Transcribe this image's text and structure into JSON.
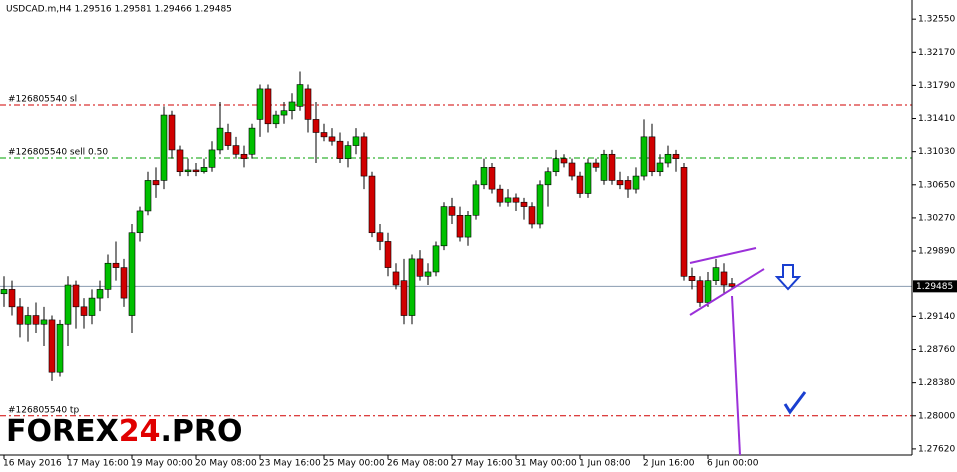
{
  "chart_data": {
    "type": "candlestick",
    "title": "USDCAD.m,H4  1.29516 1.29581 1.29466 1.29485",
    "categories": [
      "16 May 2016",
      null,
      null,
      null,
      null,
      null,
      null,
      null,
      "17 May 16:00",
      null,
      null,
      null,
      null,
      null,
      null,
      null,
      "19 May 00:00",
      null,
      null,
      null,
      null,
      null,
      null,
      null,
      "20 May 08:00",
      null,
      null,
      null,
      null,
      null,
      null,
      null,
      "23 May 16:00",
      null,
      null,
      null,
      null,
      null,
      null,
      null,
      "25 May 00:00",
      null,
      null,
      null,
      null,
      null,
      null,
      null,
      "26 May 08:00",
      null,
      null,
      null,
      null,
      null,
      null,
      null,
      "27 May 16:00",
      null,
      null,
      null,
      null,
      null,
      null,
      null,
      "31 May 00:00",
      null,
      null,
      null,
      null,
      null,
      null,
      null,
      "1 Jun 08:00",
      null,
      null,
      null,
      null,
      null,
      null,
      null,
      "2 Jun 16:00",
      null,
      null,
      null,
      null,
      null,
      null,
      null,
      "6 Jun 00:00",
      null,
      null,
      null
    ],
    "open": [
      1.294,
      1.2945,
      1.2925,
      1.2905,
      1.2915,
      1.2905,
      1.291,
      1.285,
      1.2905,
      1.295,
      1.2925,
      1.2915,
      1.2935,
      1.2945,
      1.2975,
      1.297,
      1.2915,
      1.301,
      1.3035,
      1.307,
      1.307,
      1.3145,
      1.3105,
      1.308,
      1.3082,
      1.308,
      1.3085,
      1.3105,
      1.3125,
      1.311,
      1.31,
      1.31,
      1.314,
      1.3175,
      1.3135,
      1.3145,
      1.315,
      1.3155,
      1.3175,
      1.314,
      1.3125,
      1.312,
      1.3115,
      1.3095,
      1.311,
      1.312,
      1.3075,
      1.301,
      1.3,
      1.2965,
      1.2955,
      1.2915,
      1.298,
      1.296,
      1.2965,
      1.2995,
      1.304,
      1.303,
      1.3005,
      1.303,
      1.3065,
      1.3085,
      1.306,
      1.3045,
      1.305,
      1.3045,
      1.304,
      1.302,
      1.3065,
      1.308,
      1.3095,
      1.309,
      1.3075,
      1.3055,
      1.309,
      1.307,
      1.31,
      1.307,
      1.307,
      1.306,
      1.3075,
      1.312,
      1.308,
      1.309,
      1.31,
      1.3085,
      1.296,
      1.2955,
      1.293,
      1.2955,
      1.2965,
      1.29516
    ],
    "high": [
      1.296,
      1.2955,
      1.2935,
      1.2925,
      1.293,
      1.2925,
      1.2915,
      1.291,
      1.296,
      1.2955,
      1.2935,
      1.2945,
      1.2955,
      1.2985,
      1.3,
      1.298,
      1.302,
      1.304,
      1.308,
      1.3085,
      1.3155,
      1.315,
      1.311,
      1.3095,
      1.309,
      1.3095,
      1.3115,
      1.316,
      1.3135,
      1.312,
      1.311,
      1.3135,
      1.318,
      1.318,
      1.315,
      1.316,
      1.317,
      1.3195,
      1.318,
      1.316,
      1.3135,
      1.313,
      1.3125,
      1.3115,
      1.313,
      1.3125,
      1.308,
      1.302,
      1.301,
      1.2975,
      1.298,
      1.2985,
      1.299,
      1.2975,
      1.3,
      1.3045,
      1.305,
      1.304,
      1.3035,
      1.307,
      1.3095,
      1.309,
      1.3065,
      1.306,
      1.3055,
      1.305,
      1.3045,
      1.307,
      1.3085,
      1.3105,
      1.31,
      1.3095,
      1.308,
      1.3095,
      1.3095,
      1.3105,
      1.3105,
      1.308,
      1.3075,
      1.3085,
      1.314,
      1.3135,
      1.31,
      1.311,
      1.3105,
      1.309,
      1.297,
      1.296,
      1.2965,
      1.298,
      1.2975,
      1.29581
    ],
    "low": [
      1.2925,
      1.2915,
      1.289,
      1.2885,
      1.2895,
      1.288,
      1.284,
      1.2845,
      1.288,
      1.29,
      1.29,
      1.2905,
      1.292,
      1.2935,
      1.2955,
      1.2925,
      1.2895,
      1.3,
      1.303,
      1.305,
      1.306,
      1.3095,
      1.3075,
      1.3075,
      1.3075,
      1.3078,
      1.308,
      1.31,
      1.3105,
      1.3095,
      1.3085,
      1.3095,
      1.312,
      1.3125,
      1.313,
      1.3135,
      1.314,
      1.315,
      1.3125,
      1.309,
      1.3115,
      1.311,
      1.309,
      1.3085,
      1.31,
      1.306,
      1.3005,
      1.299,
      1.296,
      1.2945,
      1.2905,
      1.2905,
      1.2955,
      1.295,
      1.296,
      1.299,
      1.302,
      1.3,
      1.2995,
      1.3025,
      1.306,
      1.3055,
      1.304,
      1.304,
      1.3035,
      1.3025,
      1.3015,
      1.3015,
      1.304,
      1.3075,
      1.3085,
      1.307,
      1.305,
      1.305,
      1.308,
      1.3065,
      1.3065,
      1.306,
      1.305,
      1.3055,
      1.307,
      1.3075,
      1.3075,
      1.3085,
      1.308,
      1.2955,
      1.2945,
      1.2925,
      1.2925,
      1.295,
      1.294,
      1.29466
    ],
    "close": [
      1.2945,
      1.2925,
      1.2905,
      1.2915,
      1.2905,
      1.291,
      1.285,
      1.2905,
      1.295,
      1.2925,
      1.2915,
      1.2935,
      1.2945,
      1.2975,
      1.297,
      1.2935,
      1.301,
      1.3035,
      1.307,
      1.3065,
      1.3145,
      1.3105,
      1.308,
      1.3082,
      1.308,
      1.3085,
      1.3105,
      1.313,
      1.311,
      1.31,
      1.3095,
      1.313,
      1.3175,
      1.3135,
      1.3145,
      1.315,
      1.316,
      1.318,
      1.314,
      1.3125,
      1.312,
      1.3115,
      1.3095,
      1.311,
      1.312,
      1.3075,
      1.301,
      1.3,
      1.297,
      1.295,
      1.2915,
      1.298,
      1.296,
      1.2965,
      1.2995,
      1.304,
      1.303,
      1.3005,
      1.303,
      1.3065,
      1.3085,
      1.306,
      1.3045,
      1.305,
      1.3045,
      1.304,
      1.302,
      1.3065,
      1.308,
      1.3095,
      1.309,
      1.3075,
      1.3055,
      1.309,
      1.3085,
      1.31,
      1.307,
      1.3065,
      1.306,
      1.3075,
      1.312,
      1.308,
      1.309,
      1.31,
      1.3095,
      1.296,
      1.2955,
      1.293,
      1.2955,
      1.297,
      1.295,
      1.29485
    ],
    "up_color": "#00c000",
    "down_color": "#d00000",
    "ylim": [
      1.2755,
      1.3277
    ],
    "yticks": [
      {
        "value": 1.3255,
        "label": "1.32550"
      },
      {
        "value": 1.3217,
        "label": "1.32170"
      },
      {
        "value": 1.3179,
        "label": "1.31790"
      },
      {
        "value": 1.3141,
        "label": "1.31410"
      },
      {
        "value": 1.3103,
        "label": "1.31030"
      },
      {
        "value": 1.3065,
        "label": "1.30650"
      },
      {
        "value": 1.3027,
        "label": "1.30270"
      },
      {
        "value": 1.2989,
        "label": "1.29890"
      },
      {
        "value": 1.2914,
        "label": "1.29140"
      },
      {
        "value": 1.2876,
        "label": "1.28760"
      },
      {
        "value": 1.2838,
        "label": "1.28380"
      },
      {
        "value": 1.28,
        "label": "1.28000"
      },
      {
        "value": 1.2762,
        "label": "1.27620"
      }
    ],
    "current_price": 1.29485,
    "levels": [
      {
        "label": "#126805540 sl",
        "value": 1.31565,
        "color": "#d00000"
      },
      {
        "label": "#126805540 sell 0.50",
        "value": 1.30957,
        "color": "#00a000"
      },
      {
        "label": "#126805540 tp",
        "value": 1.28,
        "color": "#d00000"
      }
    ],
    "logo": [
      "FOREX",
      "24",
      ".PRO"
    ]
  }
}
